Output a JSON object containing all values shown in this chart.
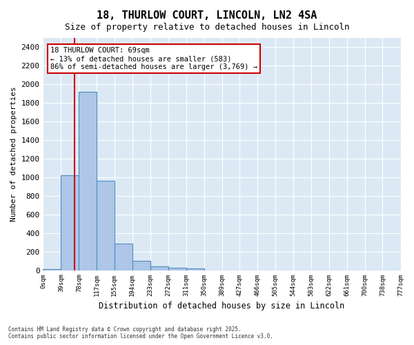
{
  "title1": "18, THURLOW COURT, LINCOLN, LN2 4SA",
  "title2": "Size of property relative to detached houses in Lincoln",
  "xlabel": "Distribution of detached houses by size in Lincoln",
  "ylabel": "Number of detached properties",
  "property_size": 69,
  "annotation_text": "18 THURLOW COURT: 69sqm\n← 13% of detached houses are smaller (583)\n86% of semi-detached houses are larger (3,769) →",
  "footer1": "Contains HM Land Registry data © Crown copyright and database right 2025.",
  "footer2": "Contains public sector information licensed under the Open Government Licence v3.0.",
  "bin_edges": [
    0,
    39,
    78,
    117,
    155,
    194,
    233,
    272,
    311,
    350,
    389,
    427,
    466,
    505,
    544,
    583,
    622,
    661,
    700,
    738,
    777
  ],
  "bin_labels": [
    "0sqm",
    "39sqm",
    "78sqm",
    "117sqm",
    "155sqm",
    "194sqm",
    "233sqm",
    "272sqm",
    "311sqm",
    "350sqm",
    "389sqm",
    "427sqm",
    "466sqm",
    "505sqm",
    "544sqm",
    "583sqm",
    "622sqm",
    "661sqm",
    "700sqm",
    "738sqm",
    "777sqm"
  ],
  "bar_heights": [
    10,
    1020,
    1920,
    960,
    290,
    100,
    40,
    30,
    20,
    0,
    0,
    0,
    0,
    0,
    0,
    0,
    0,
    0,
    0,
    0
  ],
  "bar_color": "#aec6e8",
  "bar_edge_color": "#4f8fbf",
  "vline_color": "#cc0000",
  "annotation_box_color": "#cc0000",
  "background_color": "#dce9f5",
  "ylim": [
    0,
    2500
  ],
  "yticks": [
    0,
    200,
    400,
    600,
    800,
    1000,
    1200,
    1400,
    1600,
    1800,
    2000,
    2200,
    2400
  ]
}
